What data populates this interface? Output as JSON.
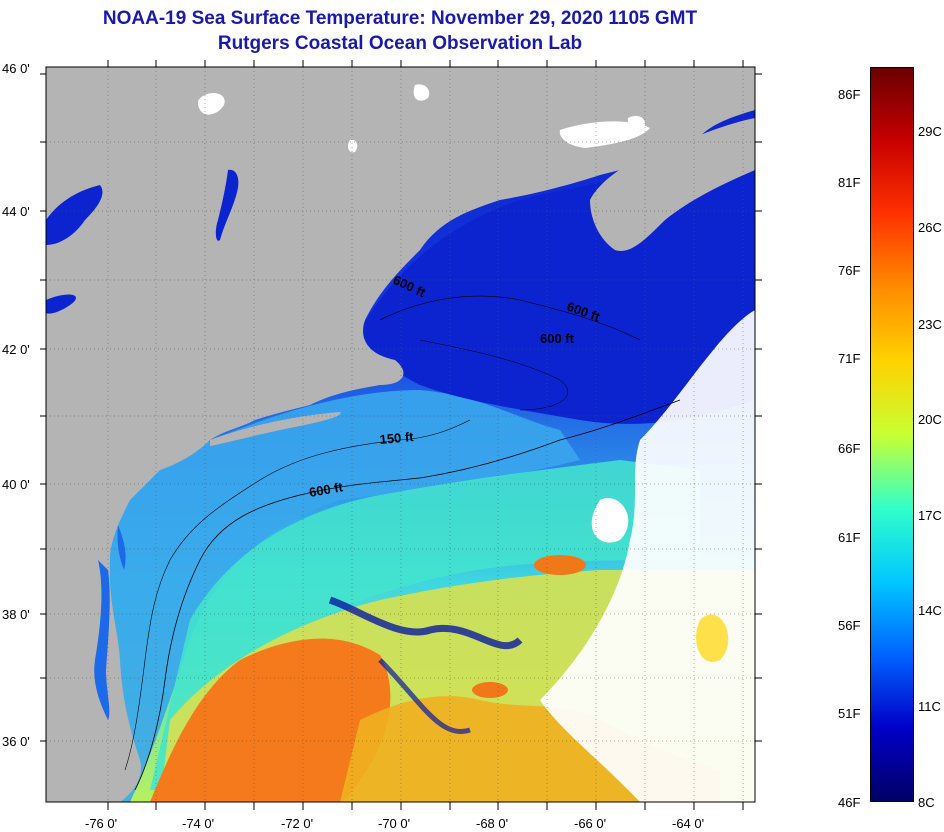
{
  "header": {
    "title": "NOAA-19 Sea Surface Temperature:  November 29, 2020 1105 GMT",
    "subtitle": "Rutgers Coastal Ocean Observation Lab"
  },
  "axes": {
    "latitude_labels": [
      "46 0'",
      "44 0'",
      "42 0'",
      "40 0'",
      "38 0'",
      "36 0'"
    ],
    "longitude_labels": [
      "-76 0'",
      "-74 0'",
      "-72 0'",
      "-70 0'",
      "-68 0'",
      "-66 0'",
      "-64 0'"
    ]
  },
  "contours": [
    {
      "label": "600 ft"
    },
    {
      "label": "600 ft"
    },
    {
      "label": "600 ft"
    },
    {
      "label": "150 ft"
    },
    {
      "label": "600 ft"
    }
  ],
  "colorbar": {
    "fahrenheit_labels": [
      "86F",
      "81F",
      "76F",
      "71F",
      "66F",
      "61F",
      "56F",
      "51F",
      "46F"
    ],
    "celsius_labels": [
      "29C",
      "26C",
      "23C",
      "20C",
      "17C",
      "14C",
      "11C",
      "8C"
    ],
    "colors": [
      "#6a0000",
      "#c80000",
      "#ff3200",
      "#ff8c00",
      "#ffd200",
      "#c8ff32",
      "#32ffc8",
      "#00c8ff",
      "#0064ff",
      "#0000c8",
      "#000064"
    ]
  },
  "palette": {
    "land": "#b4b4b4",
    "lakes": "#ffffff",
    "gulf_of_maine": "#1030d8",
    "shelf": "#38a8ec",
    "slope": "#3de0d0",
    "gulf_stream": "#f47a1c",
    "cloud": "#ffffff"
  }
}
